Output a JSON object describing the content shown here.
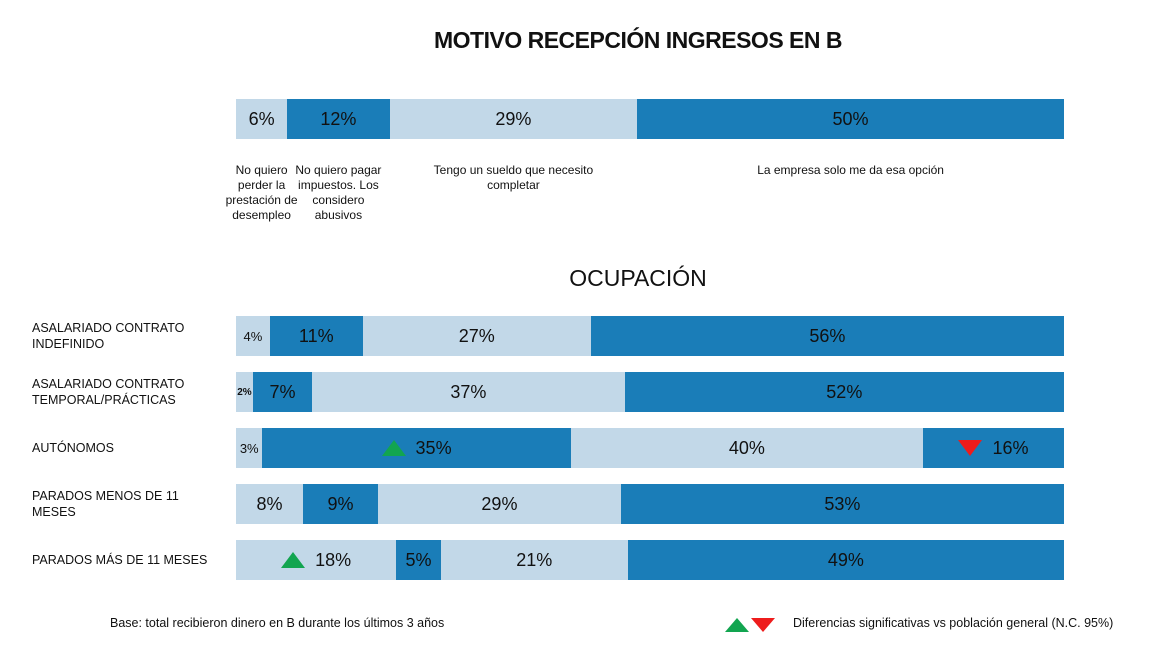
{
  "colors": {
    "light": "#c2d8e8",
    "dark": "#1a7db8",
    "up": "#12a550",
    "down": "#ee1c1c"
  },
  "chart_data": [
    {
      "type": "bar",
      "stacked": "horizontal-100",
      "title": "MOTIVO RECEPCIÓN INGRESOS EN B",
      "categories": [
        "No quiero perder la prestación de desempleo",
        "No quiero pagar impuestos. Los considero abusivos",
        "Tengo un sueldo que necesito completar",
        "La empresa solo me da esa opción"
      ],
      "values": [
        6,
        12,
        29,
        50
      ]
    },
    {
      "type": "bar",
      "stacked": "horizontal-100",
      "title": "OCUPACIÓN",
      "rows": [
        {
          "label": "ASALARIADO CONTRATO INDEFINIDO",
          "values": [
            4,
            11,
            27,
            56
          ],
          "sig": [
            null,
            null,
            null,
            null
          ]
        },
        {
          "label": "ASALARIADO CONTRATO TEMPORAL/PRÁCTICAS",
          "values": [
            2,
            7,
            37,
            52
          ],
          "sig": [
            null,
            null,
            null,
            null
          ]
        },
        {
          "label": "AUTÓNOMOS",
          "values": [
            3,
            35,
            40,
            16
          ],
          "sig": [
            null,
            "up",
            null,
            "down"
          ]
        },
        {
          "label": "PARADOS MENOS DE 11 MESES",
          "values": [
            8,
            9,
            29,
            53
          ],
          "sig": [
            null,
            null,
            null,
            null
          ]
        },
        {
          "label": "PARADOS MÁS DE 11 MESES",
          "values": [
            18,
            5,
            21,
            49
          ],
          "sig": [
            "up",
            null,
            null,
            null
          ]
        }
      ]
    }
  ],
  "footer": {
    "base": "Base: total recibieron dinero en B durante los últimos 3 años",
    "legend": "Diferencias significativas vs población general (N.C. 95%)"
  }
}
